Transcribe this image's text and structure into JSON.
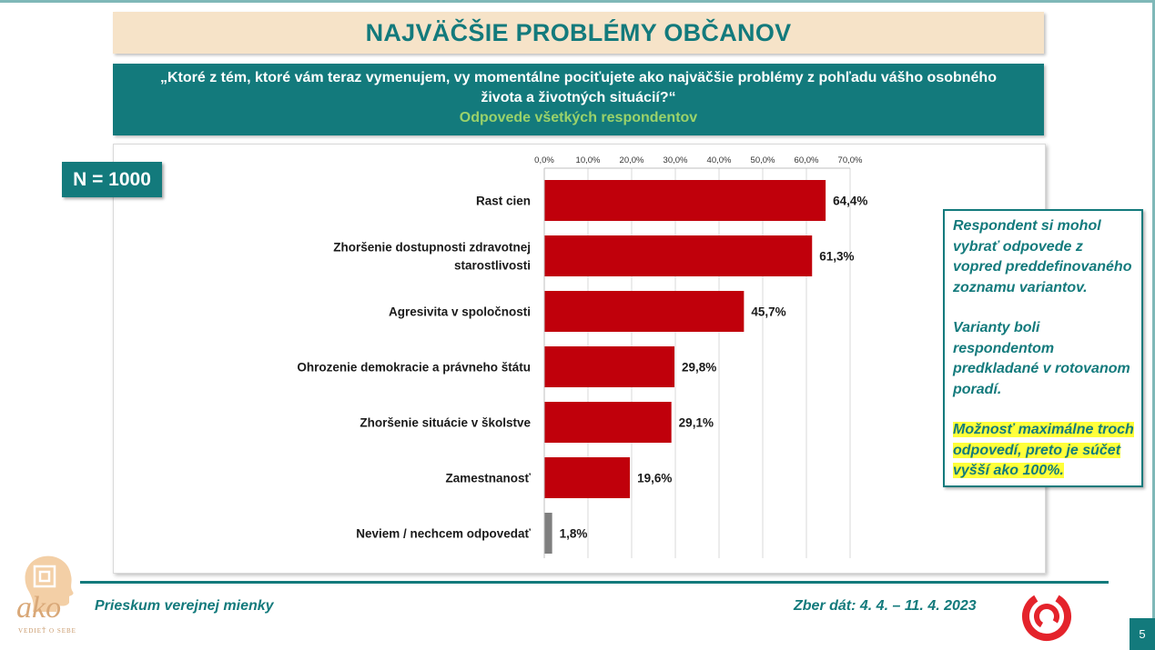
{
  "header": {
    "title": "NAJVÄČŠIE PROBLÉMY OBČANOV",
    "question": "„Ktoré z tém, ktoré vám teraz vymenujem, vy momentálne pociťujete ako najväčšie problémy z pohľadu vášho osobného života a životných situácií?“",
    "subtitle": "Odpovede všetkých respondentov"
  },
  "sample": {
    "label": "N = 1000"
  },
  "note": {
    "p1": "Respondent si mohol vybrať odpovede z vopred preddefinovaného zoznamu variantov.",
    "p2": "Varianty boli respondentom predkladané v rotovanom poradí.",
    "p3": "Možnosť maximálne troch odpovedí, preto je súčet vyšší ako 100%."
  },
  "footer": {
    "left": "Prieskum verejnej mienky",
    "right": "Zber dát: 4. 4. – 11. 4. 2023",
    "page": "5",
    "logo_text": "ako",
    "logo_tagline": "VEDIEŤ O SEBE"
  },
  "colors": {
    "teal": "#137a7c",
    "bar": "#c0000b",
    "bar_other": "#7f7f7f",
    "highlight": "#ffff3a"
  },
  "chart_data": {
    "type": "bar",
    "orientation": "horizontal",
    "categories": [
      [
        "Rast cien"
      ],
      [
        "Zhoršenie dostupnosti zdravotnej",
        "starostlivosti"
      ],
      [
        "Agresivita v spoločnosti"
      ],
      [
        "Ohrozenie demokracie a právneho štátu"
      ],
      [
        "Zhoršenie situácie v školstve"
      ],
      [
        "Zamestnanosť"
      ],
      [
        "Neviem / nechcem odpovedať"
      ]
    ],
    "values": [
      64.4,
      61.3,
      45.7,
      29.8,
      29.1,
      19.6,
      1.8
    ],
    "value_labels": [
      "64,4%",
      "61,3%",
      "45,7%",
      "29,8%",
      "29,1%",
      "19,6%",
      "1,8%"
    ],
    "bar_colors": [
      "#c0000b",
      "#c0000b",
      "#c0000b",
      "#c0000b",
      "#c0000b",
      "#c0000b",
      "#7f7f7f"
    ],
    "ticks": [
      0,
      10,
      20,
      30,
      40,
      50,
      60,
      70
    ],
    "tick_labels": [
      "0,0%",
      "10,0%",
      "20,0%",
      "30,0%",
      "40,0%",
      "50,0%",
      "60,0%",
      "70,0%"
    ],
    "xlim": [
      0,
      70
    ],
    "axis_position": "top",
    "grid": true,
    "title": "",
    "xlabel": "",
    "ylabel": ""
  }
}
